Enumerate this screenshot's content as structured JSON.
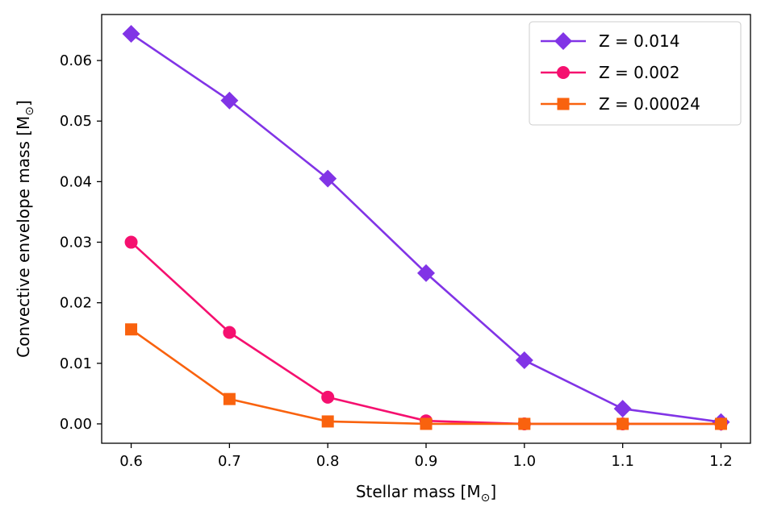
{
  "chart_data": {
    "type": "line",
    "title": "",
    "xlabel": "Stellar mass [M",
    "ylabel": "Convective envelope mass [M",
    "unit_symbol": "⊙",
    "unit_close": "]",
    "xlim": [
      0.57,
      1.23
    ],
    "ylim": [
      -0.0032,
      0.0676
    ],
    "grid": false,
    "legend_position": "top-right",
    "x": [
      0.6,
      0.7,
      0.8,
      0.9,
      1.0,
      1.1,
      1.2
    ],
    "x_tick_labels": [
      "0.6",
      "0.7",
      "0.8",
      "0.9",
      "1.0",
      "1.1",
      "1.2"
    ],
    "y_ticks": [
      0.0,
      0.01,
      0.02,
      0.03,
      0.04,
      0.05,
      0.06
    ],
    "y_tick_labels": [
      "0.00",
      "0.01",
      "0.02",
      "0.03",
      "0.04",
      "0.05",
      "0.06"
    ],
    "series": [
      {
        "name": "Z = 0.014",
        "color": "#8134E6",
        "marker": "diamond",
        "values": [
          0.0644,
          0.0534,
          0.0405,
          0.0249,
          0.0105,
          0.0025,
          0.0003
        ]
      },
      {
        "name": "Z = 0.002",
        "color": "#F5106F",
        "marker": "circle",
        "values": [
          0.03,
          0.0151,
          0.0044,
          0.0005,
          0.0,
          0.0,
          0.0
        ]
      },
      {
        "name": "Z = 0.00024",
        "color": "#F9620E",
        "marker": "square",
        "values": [
          0.0156,
          0.0041,
          0.0004,
          0.0,
          0.0,
          0.0,
          0.0
        ]
      }
    ]
  }
}
